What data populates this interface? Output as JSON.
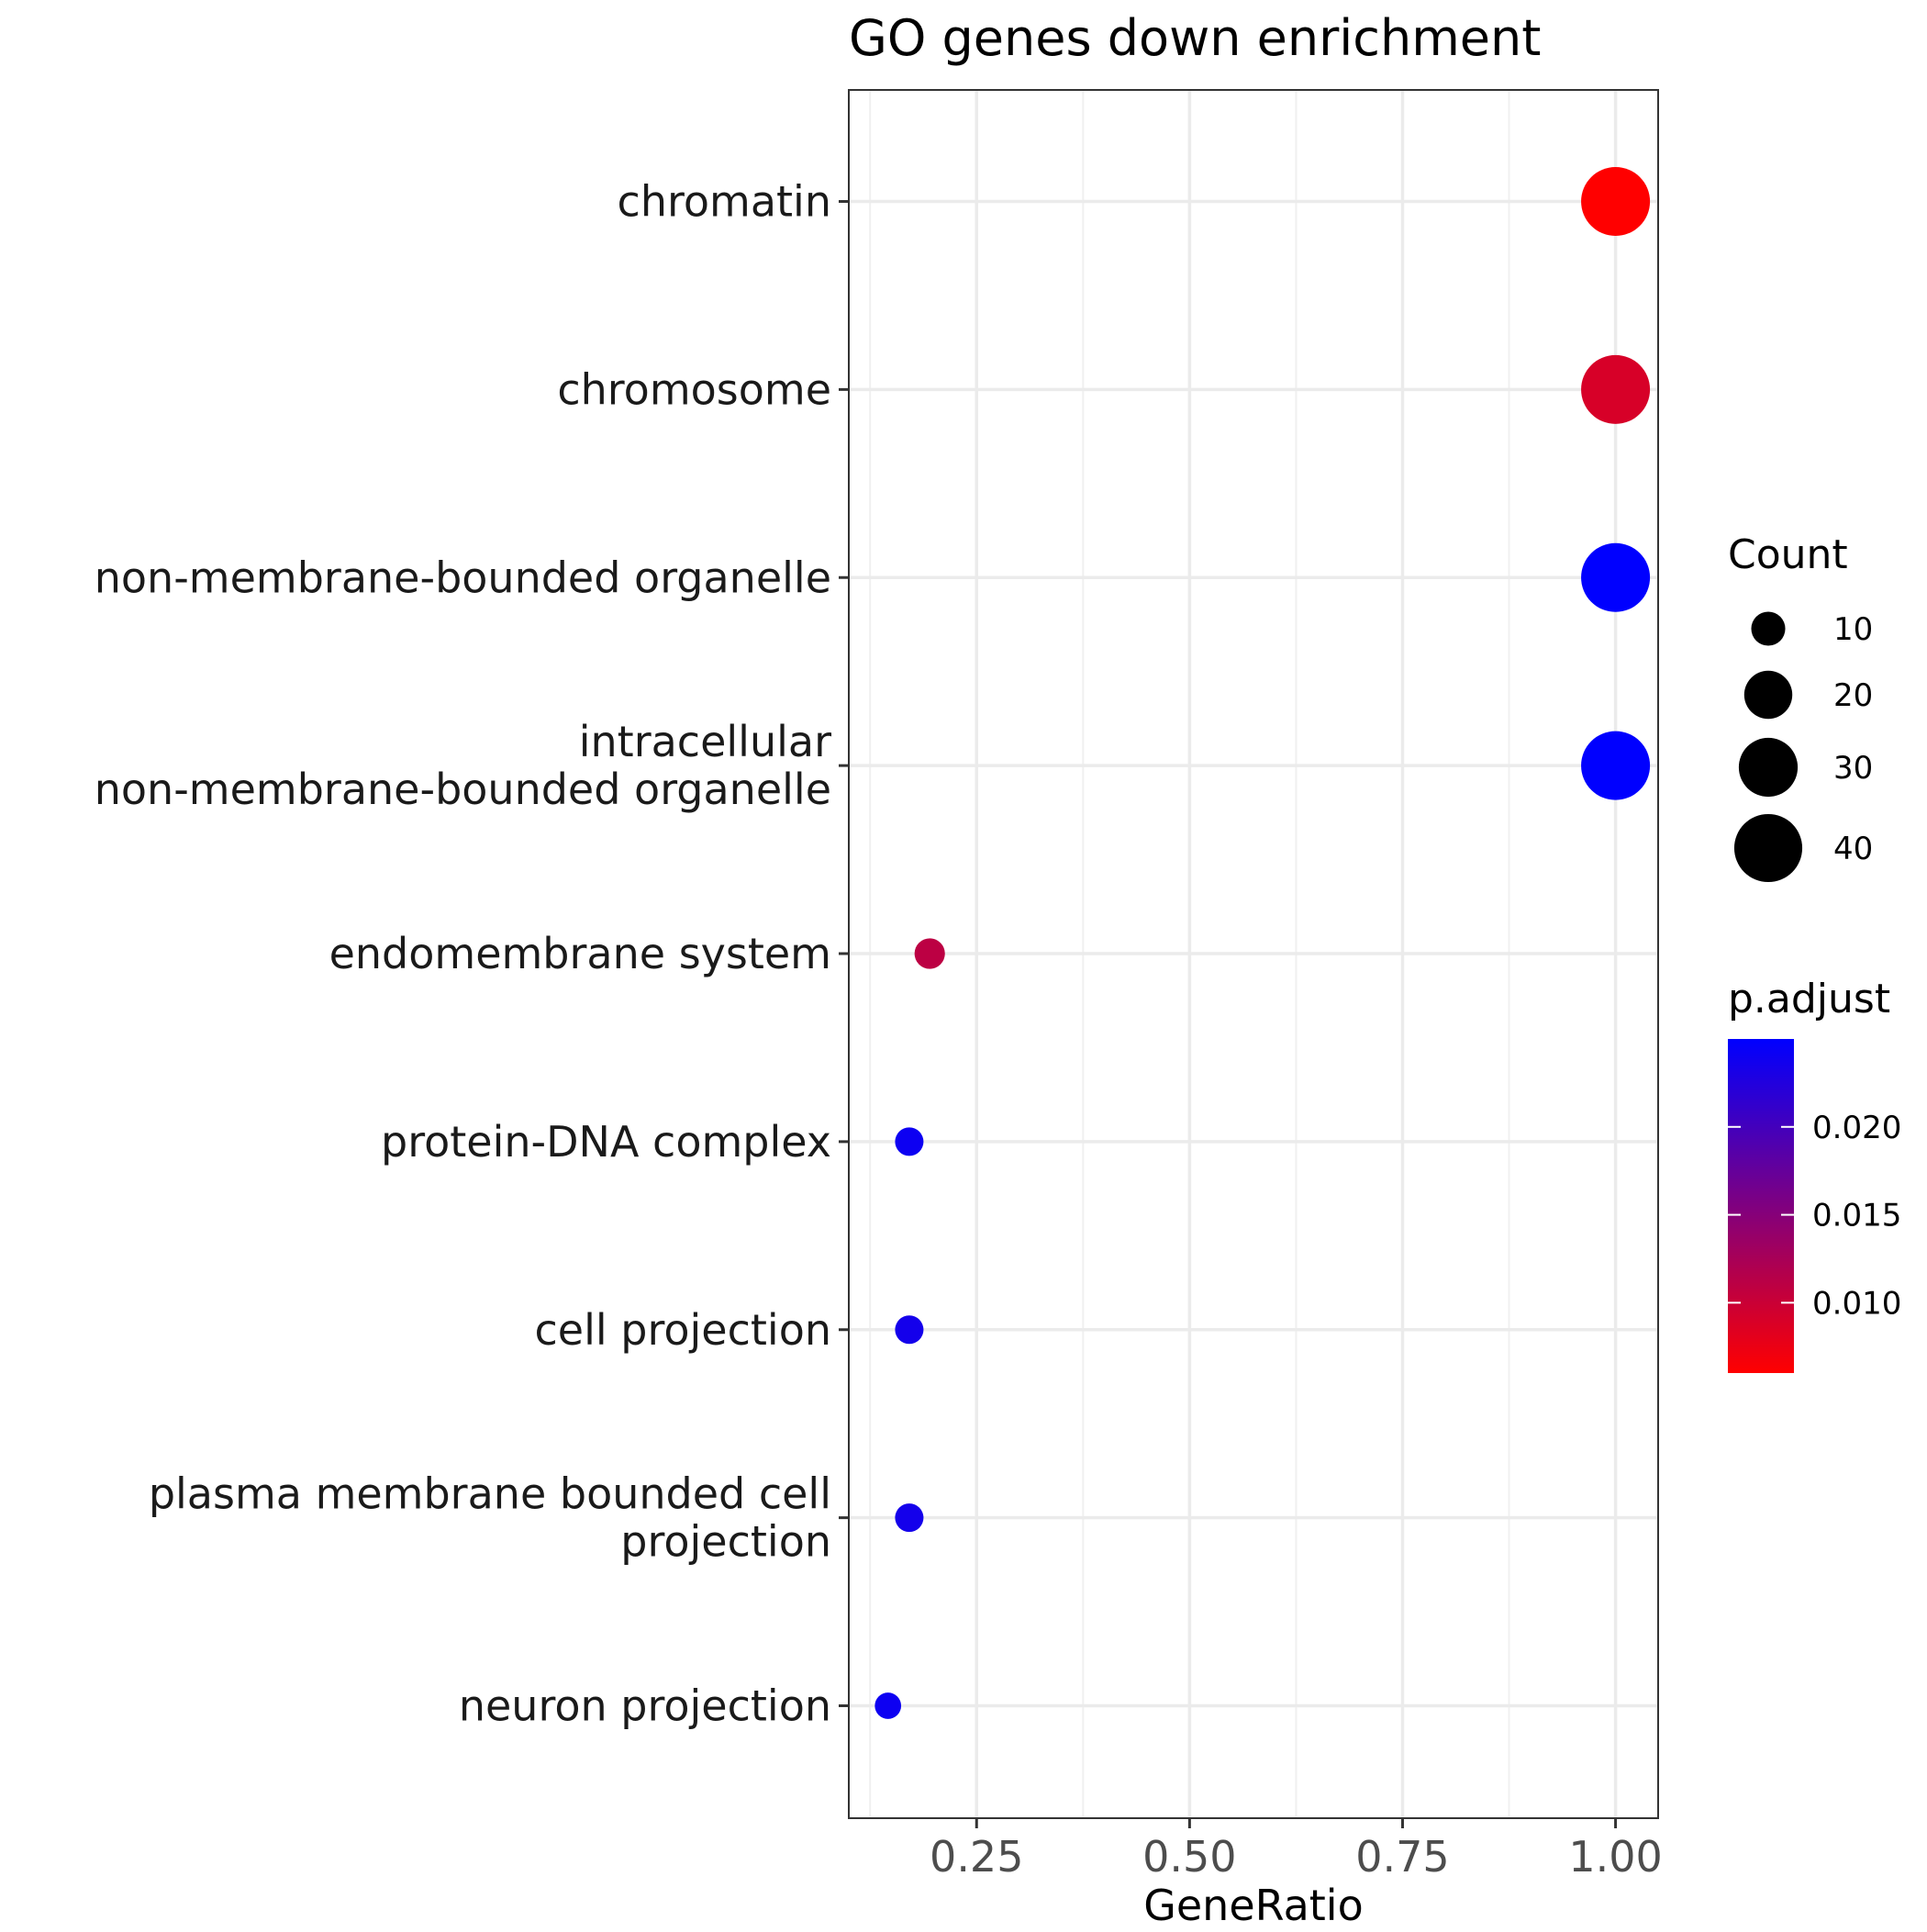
{
  "chart_data": {
    "type": "scatter",
    "title": "GO genes down enrichment",
    "xlabel": "GeneRatio",
    "ylabel": "",
    "xlim": [
      0.1,
      1.05
    ],
    "x_ticks": [
      0.25,
      0.5,
      0.75,
      1.0
    ],
    "x_tick_labels": [
      "0.25",
      "0.50",
      "0.75",
      "1.00"
    ],
    "grid": true,
    "legend_position": "right",
    "categories": [
      "chromatin",
      "chromosome",
      "non-membrane-bounded organelle",
      "intracellular\nnon-membrane-bounded organelle",
      "endomembrane system",
      "protein-DNA complex",
      "cell projection",
      "plasma membrane bounded cell\nprojection",
      "neuron projection"
    ],
    "points": [
      {
        "term": "chromatin",
        "gene_ratio": 1.0,
        "count": 41,
        "p_adjust": 0.006
      },
      {
        "term": "chromosome",
        "gene_ratio": 1.0,
        "count": 41,
        "p_adjust": 0.009
      },
      {
        "term": "non-membrane-bounded organelle",
        "gene_ratio": 1.0,
        "count": 41,
        "p_adjust": 0.025
      },
      {
        "term": "intracellular non-membrane-bounded organelle",
        "gene_ratio": 1.0,
        "count": 41,
        "p_adjust": 0.025
      },
      {
        "term": "endomembrane system",
        "gene_ratio": 0.195,
        "count": 8,
        "p_adjust": 0.011
      },
      {
        "term": "protein-DNA complex",
        "gene_ratio": 0.171,
        "count": 7,
        "p_adjust": 0.024
      },
      {
        "term": "cell projection",
        "gene_ratio": 0.171,
        "count": 7,
        "p_adjust": 0.0235
      },
      {
        "term": "plasma membrane bounded cell projection",
        "gene_ratio": 0.171,
        "count": 7,
        "p_adjust": 0.0235
      },
      {
        "term": "neuron projection",
        "gene_ratio": 0.146,
        "count": 6,
        "p_adjust": 0.024
      }
    ],
    "size_legend": {
      "title": "Count",
      "values": [
        10,
        20,
        30,
        40
      ],
      "labels": [
        "10",
        "20",
        "30",
        "40"
      ]
    },
    "color_legend": {
      "title": "p.adjust",
      "min": 0.006,
      "max": 0.025,
      "low_color": "#ff0000",
      "high_color": "#0000ff",
      "ticks": [
        0.01,
        0.015,
        0.02
      ],
      "tick_labels": [
        "0.010",
        "0.015",
        "0.020"
      ]
    }
  }
}
